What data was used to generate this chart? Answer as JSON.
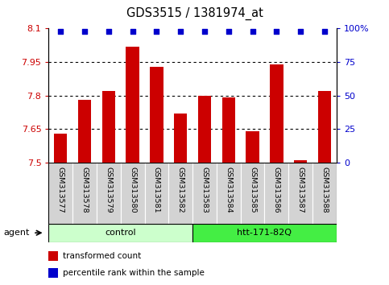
{
  "title": "GDS3515 / 1381974_at",
  "samples": [
    "GSM313577",
    "GSM313578",
    "GSM313579",
    "GSM313580",
    "GSM313581",
    "GSM313582",
    "GSM313583",
    "GSM313584",
    "GSM313585",
    "GSM313586",
    "GSM313587",
    "GSM313588"
  ],
  "bar_values": [
    7.63,
    7.78,
    7.82,
    8.02,
    7.93,
    7.72,
    7.8,
    7.79,
    7.64,
    7.94,
    7.51,
    7.82
  ],
  "percentile_values": [
    98,
    98,
    98,
    98,
    98,
    98,
    98,
    98,
    98,
    98,
    98,
    98
  ],
  "bar_color": "#cc0000",
  "dot_color": "#0000cc",
  "ylim_left": [
    7.5,
    8.1
  ],
  "ylim_right": [
    0,
    100
  ],
  "yticks_left": [
    7.5,
    7.65,
    7.8,
    7.95,
    8.1
  ],
  "yticks_right": [
    0,
    25,
    50,
    75,
    100
  ],
  "grid_values": [
    7.65,
    7.8,
    7.95
  ],
  "control_color_light": "#ccffcc",
  "control_color_dark": "#44ee44",
  "agent_label": "agent",
  "legend_bar_label": "transformed count",
  "legend_dot_label": "percentile rank within the sample",
  "tick_label_color_left": "#cc0000",
  "tick_label_color_right": "#0000cc"
}
